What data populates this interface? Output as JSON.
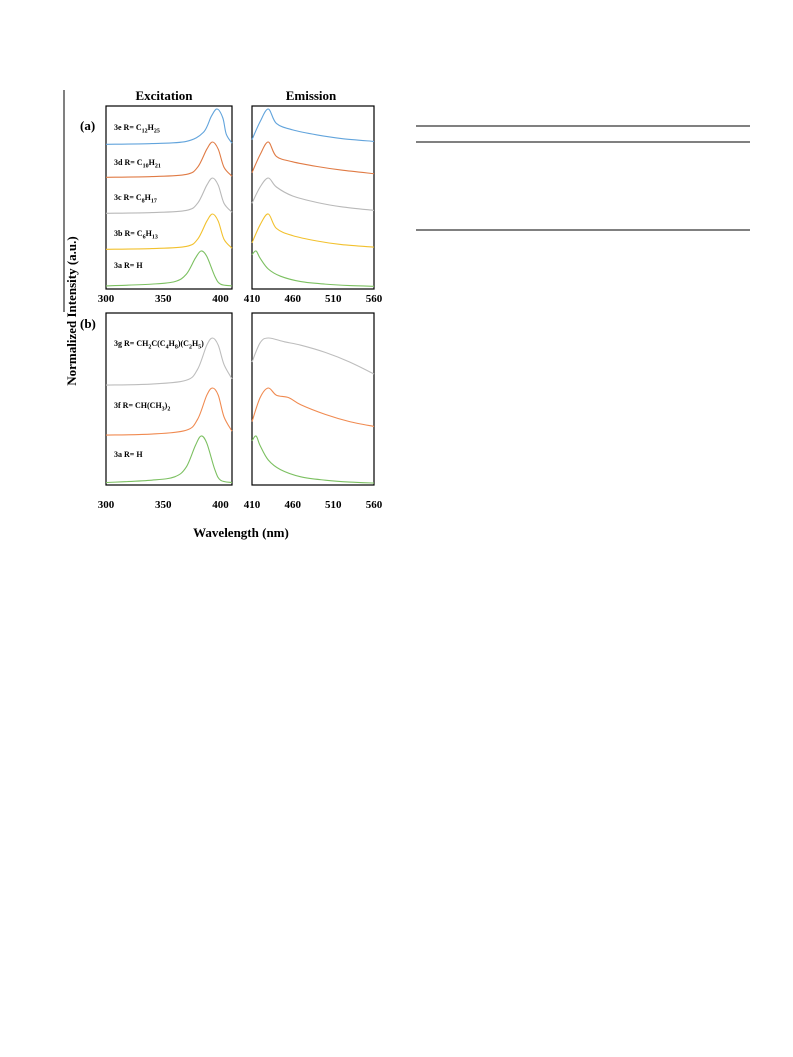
{
  "chart_data": {
    "type": "line",
    "ylabel": "Normalized  Intensity  (a.u.)",
    "xlabel": "Wavelength (nm)",
    "columns": {
      "excitation": {
        "title": "Excitation",
        "xlim": [
          300,
          410
        ],
        "ticks": [
          300,
          350,
          400
        ]
      },
      "emission": {
        "title": "Emission",
        "xlim": [
          410,
          560
        ],
        "ticks": [
          410,
          460,
          510,
          560
        ]
      }
    },
    "colors": {
      "3a": "#7cc061",
      "3b": "#f2c12e",
      "3c": "#b9b9b9",
      "3d": "#e07b45",
      "3e": "#62a4dc",
      "3f": "#f08a50",
      "3g": "#bdbdbd"
    },
    "panels": [
      {
        "tag": "(a)",
        "series": [
          {
            "id": "3e",
            "label": "3e R= C12H25",
            "color": "#62a4dc",
            "excitation": {
              "x": [
                300,
                340,
                370,
                385,
                392,
                397,
                402,
                405,
                410
              ],
              "y": [
                0.02,
                0.04,
                0.1,
                0.35,
                0.8,
                1.0,
                0.75,
                0.3,
                0.05
              ]
            },
            "emission": {
              "x": [
                410,
                420,
                430,
                440,
                460,
                490,
                520,
                560
              ],
              "y": [
                0.15,
                0.65,
                1.0,
                0.6,
                0.42,
                0.28,
                0.18,
                0.1
              ]
            }
          },
          {
            "id": "3d",
            "label": "3d R= C10H21",
            "color": "#e07b45",
            "excitation": {
              "x": [
                300,
                340,
                370,
                380,
                388,
                393,
                398,
                403,
                410
              ],
              "y": [
                0.02,
                0.04,
                0.1,
                0.3,
                0.8,
                1.0,
                0.8,
                0.3,
                0.05
              ]
            },
            "emission": {
              "x": [
                410,
                420,
                430,
                440,
                460,
                490,
                520,
                560
              ],
              "y": [
                0.15,
                0.65,
                1.0,
                0.6,
                0.45,
                0.32,
                0.22,
                0.12
              ]
            }
          },
          {
            "id": "3c",
            "label": "3c R= C8H17",
            "color": "#b9b9b9",
            "excitation": {
              "x": [
                300,
                340,
                370,
                380,
                388,
                393,
                398,
                403,
                410
              ],
              "y": [
                0.02,
                0.04,
                0.1,
                0.3,
                0.8,
                1.0,
                0.8,
                0.3,
                0.05
              ]
            },
            "emission": {
              "x": [
                410,
                420,
                430,
                440,
                460,
                490,
                520,
                560
              ],
              "y": [
                0.3,
                0.75,
                1.0,
                0.75,
                0.5,
                0.32,
                0.2,
                0.1
              ]
            }
          },
          {
            "id": "3b",
            "label": "3b R= C6H13",
            "color": "#f2c12e",
            "excitation": {
              "x": [
                300,
                340,
                370,
                380,
                388,
                393,
                398,
                403,
                410
              ],
              "y": [
                0.02,
                0.04,
                0.1,
                0.3,
                0.8,
                1.0,
                0.8,
                0.3,
                0.05
              ]
            },
            "emission": {
              "x": [
                410,
                420,
                430,
                440,
                460,
                490,
                520,
                560
              ],
              "y": [
                0.2,
                0.7,
                1.0,
                0.6,
                0.4,
                0.25,
                0.15,
                0.08
              ]
            }
          },
          {
            "id": "3a",
            "label": "3a R= H",
            "color": "#7cc061",
            "excitation": {
              "x": [
                300,
                340,
                360,
                370,
                378,
                383,
                388,
                395,
                400,
                410
              ],
              "y": [
                0.03,
                0.08,
                0.15,
                0.35,
                0.8,
                1.0,
                0.85,
                0.3,
                0.08,
                0.03
              ]
            },
            "emission": {
              "x": [
                410,
                415,
                420,
                430,
                445,
                470,
                500,
                530,
                560
              ],
              "y": [
                0.9,
                1.0,
                0.8,
                0.5,
                0.3,
                0.15,
                0.08,
                0.04,
                0.02
              ]
            }
          }
        ]
      },
      {
        "tag": "(b)",
        "series": [
          {
            "id": "3g",
            "label": "3g R= CH2C(C4H8)(C2H5)",
            "color": "#bdbdbd",
            "excitation": {
              "x": [
                300,
                340,
                370,
                380,
                388,
                393,
                398,
                403,
                410
              ],
              "y": [
                0.02,
                0.04,
                0.12,
                0.35,
                0.85,
                1.0,
                0.85,
                0.45,
                0.15
              ]
            },
            "emission": {
              "x": [
                410,
                420,
                430,
                450,
                470,
                500,
                530,
                560
              ],
              "y": [
                0.5,
                0.9,
                1.0,
                0.92,
                0.85,
                0.7,
                0.5,
                0.25
              ]
            }
          },
          {
            "id": "3f",
            "label": "3f R= CH(CH3)2",
            "color": "#f08a50",
            "excitation": {
              "x": [
                300,
                340,
                370,
                380,
                388,
                393,
                398,
                403,
                410
              ],
              "y": [
                0.02,
                0.04,
                0.12,
                0.35,
                0.85,
                1.0,
                0.85,
                0.4,
                0.1
              ]
            },
            "emission": {
              "x": [
                410,
                420,
                430,
                440,
                455,
                470,
                500,
                530,
                560
              ],
              "y": [
                0.3,
                0.8,
                1.0,
                0.85,
                0.8,
                0.65,
                0.45,
                0.3,
                0.2
              ]
            }
          },
          {
            "id": "3a",
            "label": "3a R= H",
            "color": "#7cc061",
            "excitation": {
              "x": [
                300,
                340,
                360,
                370,
                378,
                383,
                388,
                395,
                400,
                410
              ],
              "y": [
                0.03,
                0.08,
                0.15,
                0.35,
                0.8,
                1.0,
                0.85,
                0.3,
                0.08,
                0.03
              ]
            },
            "emission": {
              "x": [
                410,
                415,
                420,
                430,
                445,
                470,
                500,
                530,
                560
              ],
              "y": [
                0.9,
                1.0,
                0.8,
                0.5,
                0.3,
                0.15,
                0.08,
                0.04,
                0.02
              ]
            }
          }
        ]
      }
    ]
  }
}
